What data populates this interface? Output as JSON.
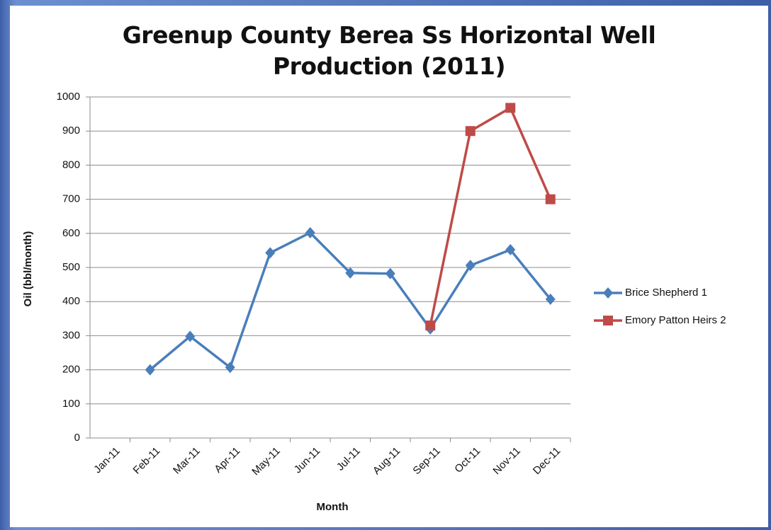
{
  "chart_data": {
    "type": "line",
    "title": "Greenup County Berea Ss Horizontal Well Production (2011)",
    "x_label": "Month",
    "y_label": "Oil (bbl/month)",
    "categories": [
      "Jan-11",
      "Feb-11",
      "Mar-11",
      "Apr-11",
      "May-11",
      "Jun-11",
      "Jul-11",
      "Aug-11",
      "Sep-11",
      "Oct-11",
      "Nov-11",
      "Dec-11"
    ],
    "series": [
      {
        "name": "Brice Shepherd 1",
        "color": "#4a7ebb",
        "marker": "diamond",
        "values": [
          null,
          200,
          298,
          207,
          543,
          602,
          484,
          482,
          320,
          506,
          552,
          407
        ]
      },
      {
        "name": "Emory Patton Heirs 2",
        "color": "#be4b48",
        "marker": "square",
        "values": [
          null,
          null,
          null,
          null,
          null,
          null,
          null,
          null,
          330,
          900,
          968,
          700
        ]
      }
    ],
    "ylim": [
      0,
      1000
    ],
    "yticks": [
      0,
      100,
      200,
      300,
      400,
      500,
      600,
      700,
      800,
      900,
      1000
    ],
    "grid": true,
    "legend": "right"
  }
}
